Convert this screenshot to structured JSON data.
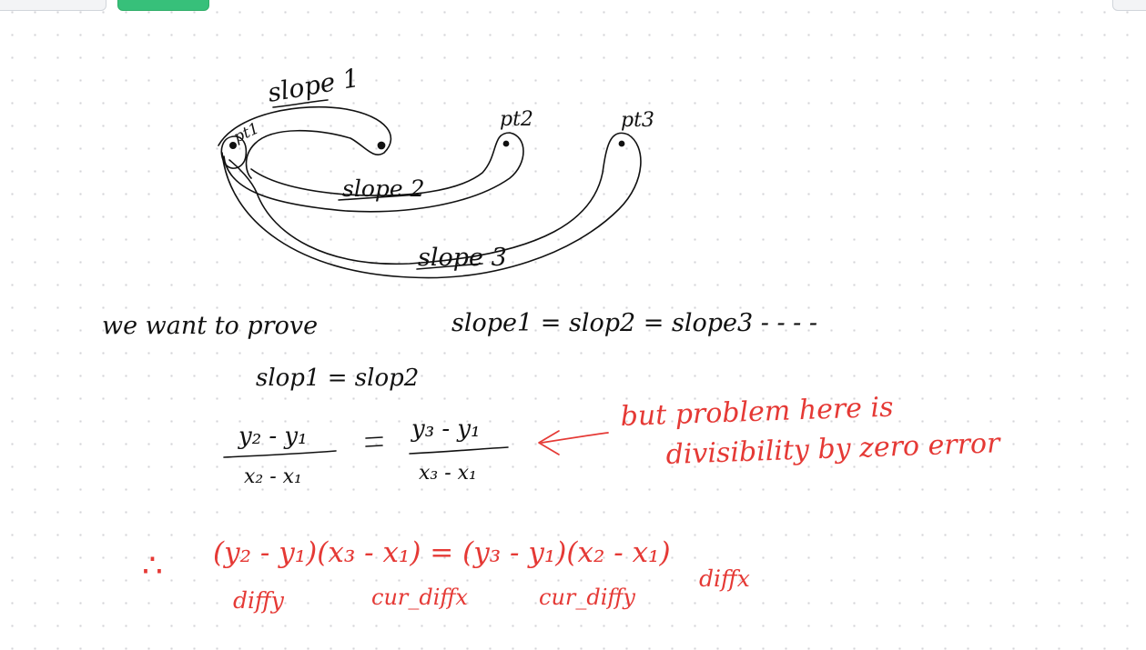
{
  "toolbar": {
    "accent_color": "#37c07a",
    "button_names": [
      "left-tab",
      "primary-action",
      "right-tab"
    ]
  },
  "diagram": {
    "ink_black": "#111111",
    "ink_red": "#e53935",
    "points": {
      "pt1": "pt1",
      "pt2": "pt2",
      "pt3": "pt3"
    },
    "slopes": {
      "slope1": "slope 1",
      "slope2": "slope 2",
      "slope3": "slope 3"
    }
  },
  "notes": {
    "line1": "we   want  to  prove",
    "line1_rhs": "slope1 = slop2 = slope3   - - - -",
    "line2": "slop1   =  slop2",
    "frac_left_num": "y₂ - y₁",
    "frac_left_den": "x₂ - x₁",
    "equals": "=",
    "frac_right_num": "y₃ - y₁",
    "frac_right_den": "x₃ - x₁",
    "problem_line1": "but problem here is",
    "problem_line2": "divisibility by zero error",
    "therefore": "∴",
    "product_eq": "(y₂ - y₁)(x₃ - x₁)  = (y₃ - y₁)(x₂ - x₁)",
    "label_diffy": "diffy",
    "label_curdiffx": "cur_diffx",
    "label_curdiffy": "cur_diffy",
    "label_diffx": "diffx"
  }
}
